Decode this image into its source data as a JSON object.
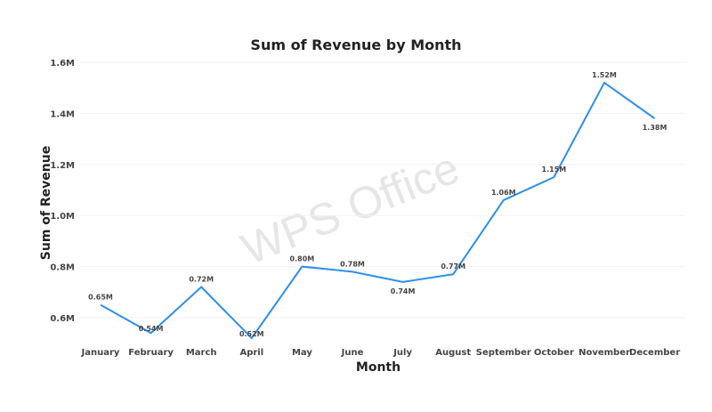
{
  "chart_data": {
    "type": "line",
    "title": "Sum of Revenue by Month",
    "xlabel": "Month",
    "ylabel": "Sum of Revenue",
    "categories": [
      "January",
      "February",
      "March",
      "April",
      "May",
      "June",
      "July",
      "August",
      "September",
      "October",
      "November",
      "December"
    ],
    "series": [
      {
        "name": "Sum of Revenue",
        "values": [
          0.65,
          0.54,
          0.72,
          0.52,
          0.8,
          0.78,
          0.74,
          0.77,
          1.06,
          1.15,
          1.52,
          1.38
        ],
        "unit": "M"
      }
    ],
    "data_labels": [
      "0.65M",
      "0.54M",
      "0.72M",
      "0.52M",
      "0.80M",
      "0.78M",
      "0.74M",
      "0.77M",
      "1.06M",
      "1.15M",
      "1.52M",
      "1.38M"
    ],
    "yticks": [
      0.6,
      0.8,
      1.0,
      1.2,
      1.4,
      1.6
    ],
    "ytick_labels": [
      "0.6M",
      "0.8M",
      "1.0M",
      "1.2M",
      "1.4M",
      "1.6M"
    ],
    "ylim": [
      0.485,
      1.6
    ],
    "grid": true,
    "line_color": "#2b8ef0"
  },
  "watermark": "WPS Office"
}
